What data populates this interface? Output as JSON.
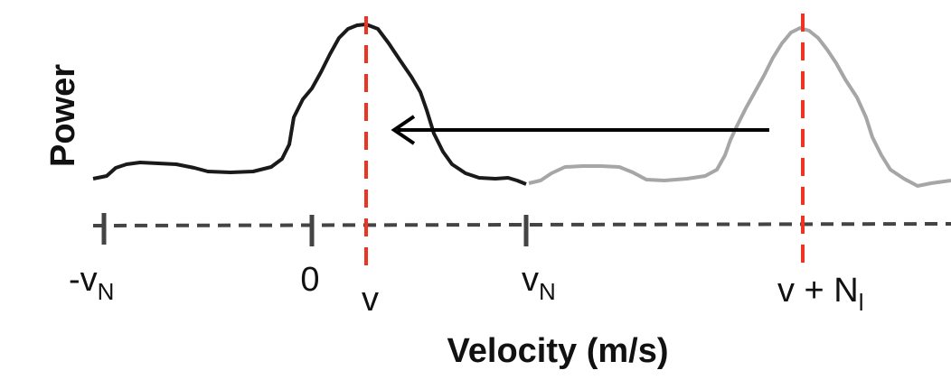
{
  "y_axis_label": "Power",
  "x_axis_label": "Velocity (m/s)",
  "ticks": {
    "neg_vn": {
      "main": "-v",
      "sub": "N"
    },
    "zero": {
      "main": "0"
    },
    "vn": {
      "main": "v",
      "sub": "N"
    }
  },
  "markers": {
    "v": {
      "main": "v"
    },
    "v_plus_nl": {
      "main": "v + N",
      "sub": "l"
    }
  },
  "colors": {
    "aliased_spectrum": "#1a1a1a",
    "true_spectrum": "#a6a6a6",
    "marker_lines": "#ee3322",
    "axis": "#444444",
    "arrow": "#000000"
  },
  "arrow_icon": "arrow-left-icon"
}
